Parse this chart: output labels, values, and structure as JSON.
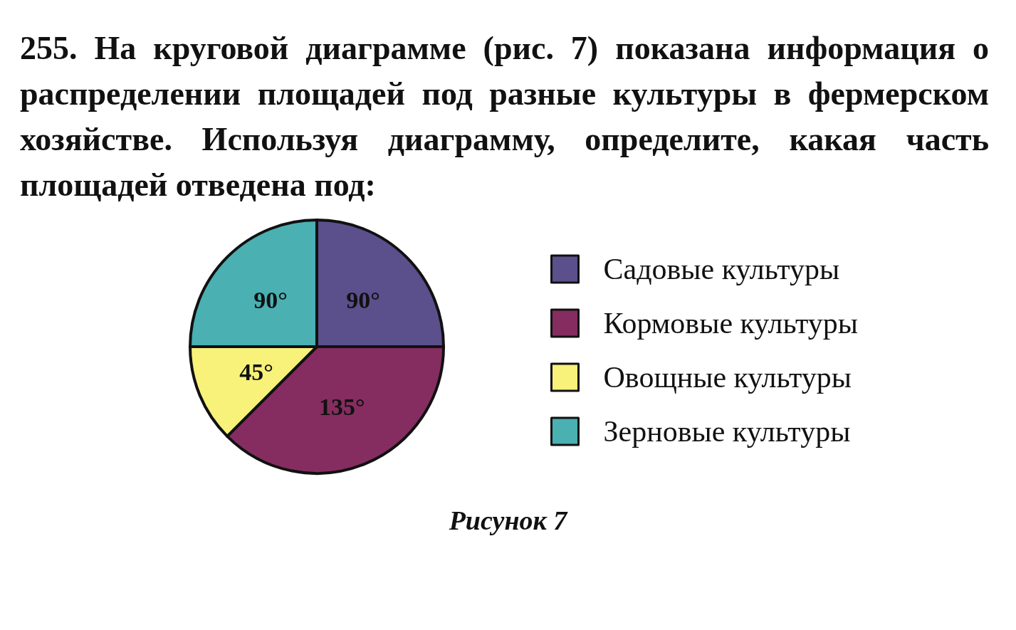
{
  "chart_data": {
    "type": "pie",
    "title": "255. На круговой диаграмме (рис. 7) показана информация о распределении площадей под разные культуры в фермерском хозяйстве. Используя диаграмму, определите, какая часть площадей отведена под:",
    "categories": [
      "Садовые культуры",
      "Кормовые культуры",
      "Овощные культуры",
      "Зерновые культуры"
    ],
    "values": [
      90,
      135,
      45,
      90
    ],
    "colors": [
      "#5b4f8c",
      "#852d60",
      "#f8f17a",
      "#4ab0b2"
    ],
    "value_labels": [
      "90°",
      "135°",
      "45°",
      "90°"
    ],
    "legend": "right",
    "annotations": [
      "Рисунок 7"
    ]
  }
}
